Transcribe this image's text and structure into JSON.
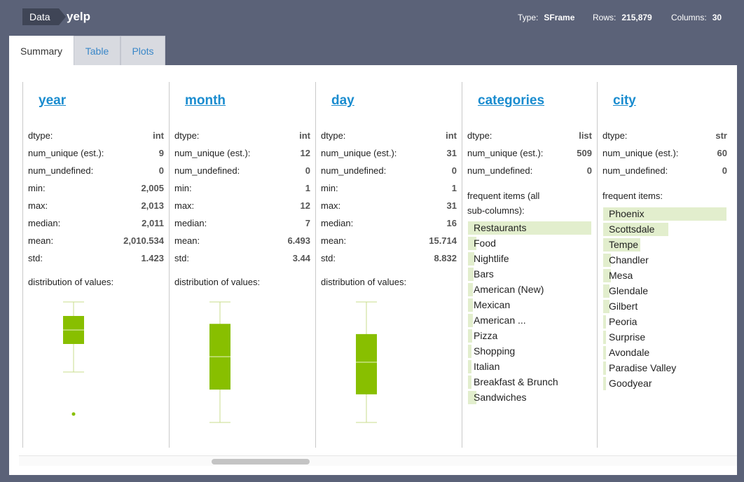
{
  "header": {
    "crumb": "Data",
    "title": "yelp",
    "type_label": "Type:",
    "type_value": "SFrame",
    "rows_label": "Rows:",
    "rows_value": "215,879",
    "columns_label": "Columns:",
    "columns_value": "30"
  },
  "tabs": [
    {
      "label": "Summary",
      "active": true
    },
    {
      "label": "Table",
      "active": false
    },
    {
      "label": "Plots",
      "active": false
    }
  ],
  "colors": {
    "accent_green": "#88bf00",
    "freq_bar": "#e2eecd",
    "link_blue": "#1a8ccf"
  },
  "columns": [
    {
      "name": "year",
      "stats": [
        {
          "label": "dtype:",
          "value": "int"
        },
        {
          "label": "num_unique (est.):",
          "value": "9"
        },
        {
          "label": "num_undefined:",
          "value": "0"
        },
        {
          "label": "min:",
          "value": "2,005"
        },
        {
          "label": "max:",
          "value": "2,013"
        },
        {
          "label": "median:",
          "value": "2,011"
        },
        {
          "label": "mean:",
          "value": "2,010.534"
        },
        {
          "label": "std:",
          "value": "1.423"
        }
      ],
      "dist_label": "distribution of values:",
      "boxplot": {
        "axis_min": 2004.4,
        "axis_max": 2013,
        "whisker_low": 2008,
        "q1": 2010,
        "median": 2011,
        "q3": 2012,
        "whisker_high": 2013,
        "outliers": [
          2005
        ]
      }
    },
    {
      "name": "month",
      "stats": [
        {
          "label": "dtype:",
          "value": "int"
        },
        {
          "label": "num_unique (est.):",
          "value": "12"
        },
        {
          "label": "num_undefined:",
          "value": "0"
        },
        {
          "label": "min:",
          "value": "1"
        },
        {
          "label": "max:",
          "value": "12"
        },
        {
          "label": "median:",
          "value": "7"
        },
        {
          "label": "mean:",
          "value": "6.493"
        },
        {
          "label": "std:",
          "value": "3.44"
        }
      ],
      "dist_label": "distribution of values:",
      "boxplot": {
        "axis_min": 1,
        "axis_max": 12,
        "whisker_low": 1,
        "q1": 4,
        "median": 7,
        "q3": 10,
        "whisker_high": 12,
        "outliers": []
      }
    },
    {
      "name": "day",
      "stats": [
        {
          "label": "dtype:",
          "value": "int"
        },
        {
          "label": "num_unique (est.):",
          "value": "31"
        },
        {
          "label": "num_undefined:",
          "value": "0"
        },
        {
          "label": "min:",
          "value": "1"
        },
        {
          "label": "max:",
          "value": "31"
        },
        {
          "label": "median:",
          "value": "16"
        },
        {
          "label": "mean:",
          "value": "15.714"
        },
        {
          "label": "std:",
          "value": "8.832"
        }
      ],
      "dist_label": "distribution of values:",
      "boxplot": {
        "axis_min": 1,
        "axis_max": 31,
        "whisker_low": 1,
        "q1": 8,
        "median": 16,
        "q3": 23,
        "whisker_high": 31,
        "outliers": []
      }
    },
    {
      "name": "categories",
      "stats": [
        {
          "label": "dtype:",
          "value": "list"
        },
        {
          "label": "num_unique (est.):",
          "value": "509"
        },
        {
          "label": "num_undefined:",
          "value": "0"
        }
      ],
      "freq_label": "frequent items (all sub-columns):",
      "frequent_items": [
        {
          "label": "Restaurants",
          "share": 1.0
        },
        {
          "label": "Food",
          "share": 0.07
        },
        {
          "label": "Nightlife",
          "share": 0.05
        },
        {
          "label": "Bars",
          "share": 0.045
        },
        {
          "label": "American (New)",
          "share": 0.04
        },
        {
          "label": "Mexican",
          "share": 0.04
        },
        {
          "label": "American ...",
          "share": 0.04
        },
        {
          "label": "Pizza",
          "share": 0.035
        },
        {
          "label": "Shopping",
          "share": 0.03
        },
        {
          "label": "Italian",
          "share": 0.03
        },
        {
          "label": "Breakfast & Brunch",
          "share": 0.03
        },
        {
          "label": "Sandwiches",
          "share": 0.07
        }
      ]
    },
    {
      "name": "city",
      "stats": [
        {
          "label": "dtype:",
          "value": "str"
        },
        {
          "label": "num_unique (est.):",
          "value": "60"
        },
        {
          "label": "num_undefined:",
          "value": "0"
        }
      ],
      "freq_label": "frequent items:",
      "frequent_items": [
        {
          "label": "Phoenix",
          "share": 1.0
        },
        {
          "label": "Scottsdale",
          "share": 0.53
        },
        {
          "label": "Tempe",
          "share": 0.3
        },
        {
          "label": "Chandler",
          "share": 0.06
        },
        {
          "label": "Mesa",
          "share": 0.06
        },
        {
          "label": "Glendale",
          "share": 0.05
        },
        {
          "label": "Gilbert",
          "share": 0.05
        },
        {
          "label": "Peoria",
          "share": 0.02
        },
        {
          "label": "Surprise",
          "share": 0.02
        },
        {
          "label": "Avondale",
          "share": 0.02
        },
        {
          "label": "Paradise Valley",
          "share": 0.02
        },
        {
          "label": "Goodyear",
          "share": 0.02
        }
      ]
    }
  ]
}
